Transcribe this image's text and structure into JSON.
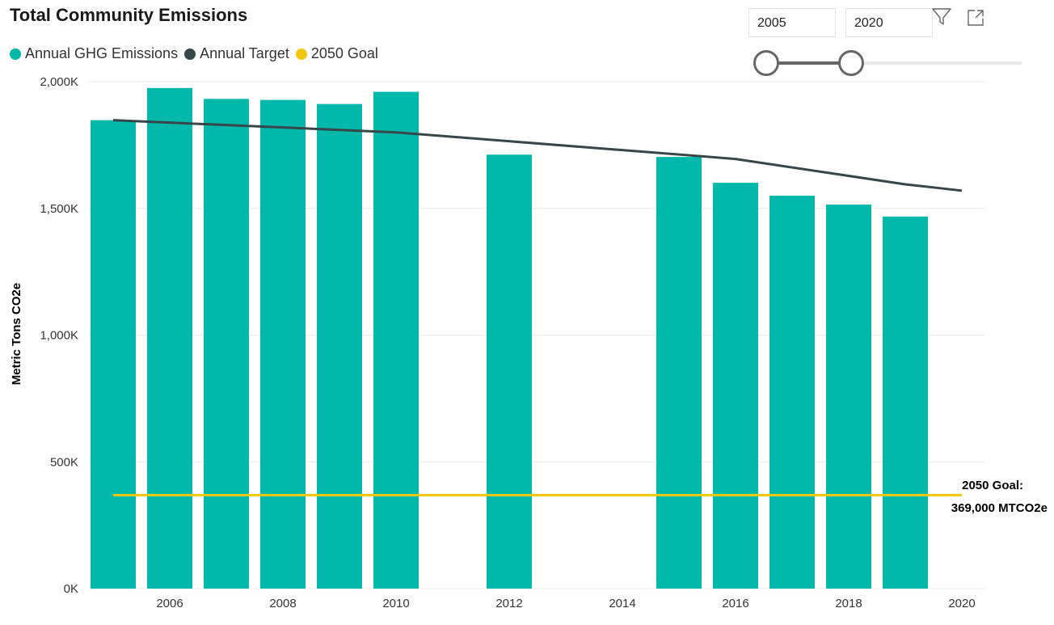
{
  "header": {
    "title": "Total Community Emissions"
  },
  "slicer": {
    "start_value": "2005",
    "end_value": "2020",
    "range": [
      2005,
      2020
    ],
    "selected": [
      2005,
      2020
    ]
  },
  "icons": {
    "filter": "filter-icon",
    "focus": "focus-mode-icon"
  },
  "colors": {
    "emissions": "#01B8AA",
    "target": "#374649",
    "goal": "#F2C80F"
  },
  "chart_data": {
    "type": "bar",
    "title": "Total Community Emissions",
    "ylabel": "Metric Tons CO2e",
    "xlabel": "",
    "ylim": [
      0,
      2000000
    ],
    "xlim": [
      2005,
      2020
    ],
    "y_ticks": [
      0,
      500000,
      1000000,
      1500000,
      2000000
    ],
    "y_tick_labels": [
      "0K",
      "500K",
      "1,000K",
      "1,500K",
      "2,000K"
    ],
    "x_ticks": [
      2006,
      2008,
      2010,
      2012,
      2014,
      2016,
      2018,
      2020
    ],
    "x_tick_labels": [
      "2006",
      "2008",
      "2010",
      "2012",
      "2014",
      "2016",
      "2018",
      "2020"
    ],
    "grid": true,
    "legend_position": "top-left",
    "series": [
      {
        "name": "Annual GHG Emissions",
        "type": "bar",
        "x": [
          2005,
          2006,
          2007,
          2008,
          2009,
          2010,
          2012,
          2015,
          2016,
          2017,
          2018,
          2019
        ],
        "values": [
          1848000,
          1975000,
          1932000,
          1928000,
          1912000,
          1960000,
          1712000,
          1703000,
          1601000,
          1550000,
          1515000,
          1468000
        ]
      },
      {
        "name": "Annual Target",
        "type": "line",
        "x": [
          2005,
          2010,
          2016,
          2019,
          2020
        ],
        "values": [
          1848000,
          1800000,
          1695000,
          1595000,
          1570000
        ]
      },
      {
        "name": "2050 Goal",
        "type": "line",
        "x": [
          2005,
          2020
        ],
        "values": [
          369000,
          369000
        ]
      }
    ],
    "annotations": [
      {
        "line1": "2050 Goal:",
        "line2": "369,000 MTCO2e"
      }
    ]
  }
}
